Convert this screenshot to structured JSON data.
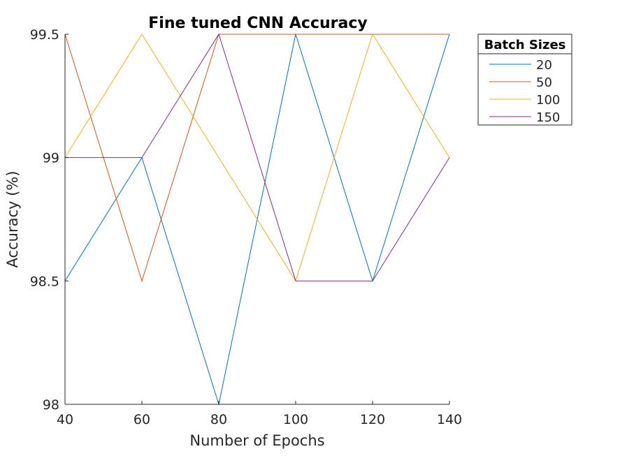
{
  "chart_data": {
    "type": "line",
    "title": "Fine tuned CNN Accuracy",
    "xlabel": "Number of Epochs",
    "ylabel": "Accuracy (%)",
    "x": [
      40,
      60,
      80,
      100,
      120,
      140
    ],
    "xlim": [
      40,
      140
    ],
    "ylim": [
      98,
      99.5
    ],
    "xticks": [
      "40",
      "60",
      "80",
      "100",
      "120",
      "140"
    ],
    "yticks": [
      "98",
      "98.5",
      "99",
      "99.5"
    ],
    "grid": false,
    "legend": {
      "title": "Batch Sizes",
      "placement": "outside-top-right"
    },
    "series": [
      {
        "name": "20",
        "color": "#0072BD",
        "values": [
          98.5,
          99,
          98,
          99.5,
          98.5,
          99.5
        ]
      },
      {
        "name": "50",
        "color": "#D95319",
        "values": [
          99.5,
          98.5,
          99.5,
          99.5,
          99.5,
          99.5
        ]
      },
      {
        "name": "100",
        "color": "#EDB120",
        "values": [
          99,
          99.5,
          99,
          98.5,
          99.5,
          99
        ]
      },
      {
        "name": "150",
        "color": "#7E2F8E",
        "values": [
          99,
          99,
          99.5,
          98.5,
          98.5,
          99
        ]
      }
    ]
  }
}
